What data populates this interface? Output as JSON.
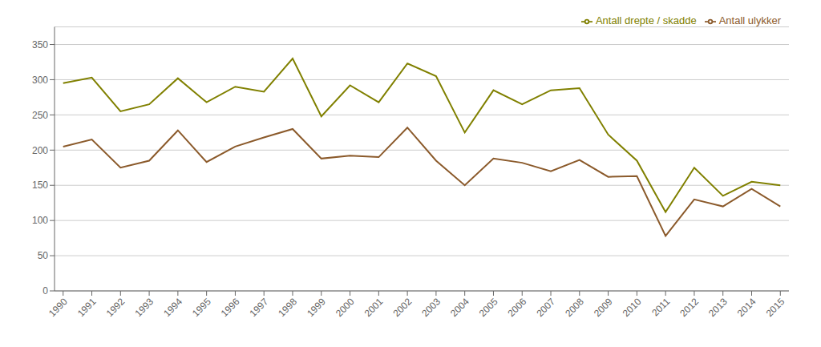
{
  "chart_data": {
    "type": "line",
    "x": [
      1990,
      1991,
      1992,
      1993,
      1994,
      1995,
      1996,
      1997,
      1998,
      1999,
      2000,
      2001,
      2002,
      2003,
      2004,
      2005,
      2006,
      2007,
      2008,
      2009,
      2010,
      2011,
      2012,
      2013,
      2014,
      2015
    ],
    "series": [
      {
        "name": "Antall ulykker",
        "color": "#8B5A2B",
        "values": [
          205,
          215,
          175,
          185,
          228,
          183,
          205,
          218,
          230,
          188,
          192,
          190,
          232,
          185,
          150,
          188,
          182,
          170,
          186,
          162,
          163,
          78,
          130,
          120,
          145,
          120
        ]
      },
      {
        "name": "Antall drepte / skadde",
        "color": "#808000",
        "values": [
          295,
          303,
          255,
          265,
          302,
          268,
          290,
          283,
          330,
          248,
          292,
          268,
          323,
          305,
          225,
          285,
          265,
          285,
          288,
          222,
          185,
          112,
          175,
          135,
          155,
          150
        ]
      }
    ],
    "xlim": [
      1989.7,
      2015.3
    ],
    "xticks": [
      1990,
      1991,
      1992,
      1993,
      1994,
      1995,
      1996,
      1997,
      1998,
      1999,
      2000,
      2001,
      2002,
      2003,
      2004,
      2005,
      2006,
      2007,
      2008,
      2009,
      2010,
      2011,
      2012,
      2013,
      2014,
      2015
    ],
    "ylim": [
      0,
      375
    ],
    "yticks": [
      0,
      50,
      100,
      150,
      200,
      250,
      300,
      350
    ],
    "grid": true,
    "legend": "upper right"
  }
}
